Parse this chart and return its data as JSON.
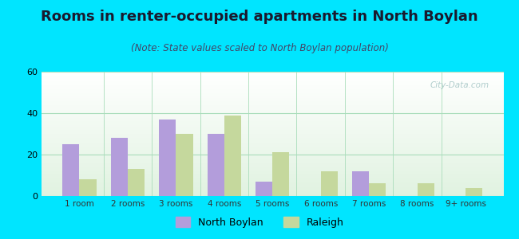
{
  "title": "Rooms in renter-occupied apartments in North Boylan",
  "subtitle": "(Note: State values scaled to North Boylan population)",
  "categories": [
    "1 room",
    "2 rooms",
    "3 rooms",
    "4 rooms",
    "5 rooms",
    "6 rooms",
    "7 rooms",
    "8 rooms",
    "9+ rooms"
  ],
  "north_boylan": [
    25,
    28,
    37,
    30,
    7,
    0,
    12,
    0,
    0
  ],
  "raleigh": [
    8,
    13,
    30,
    39,
    21,
    12,
    6,
    6,
    4
  ],
  "nb_color": "#b39ddb",
  "raleigh_color": "#c5d89d",
  "ylim": [
    0,
    60
  ],
  "yticks": [
    0,
    20,
    40,
    60
  ],
  "background_outer": "#00e5ff",
  "legend_nb": "North Boylan",
  "legend_raleigh": "Raleigh",
  "title_fontsize": 13,
  "subtitle_fontsize": 8.5,
  "watermark": "City-Data.com"
}
